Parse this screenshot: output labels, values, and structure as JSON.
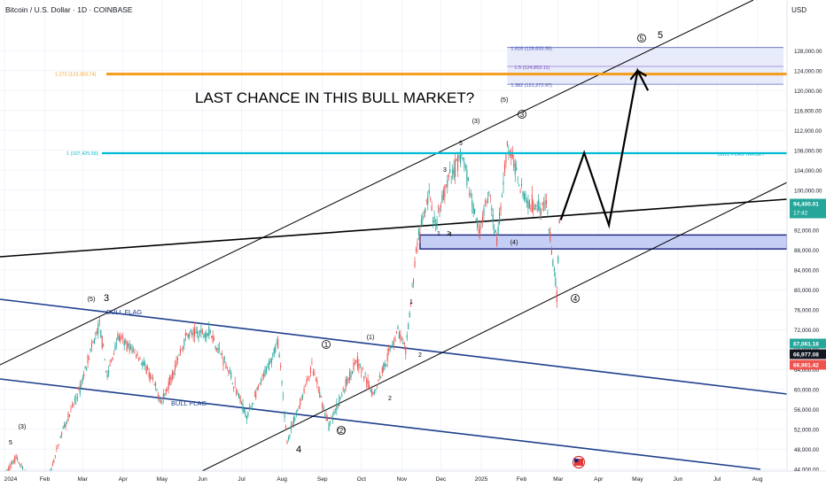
{
  "header": {
    "title": "Bitcoin / U.S. Dollar · 1D · COINBASE",
    "currency": "USD"
  },
  "headline": "LAST CHANCE IN THIS BULL MARKET?",
  "colors": {
    "up": "#26a69a",
    "down": "#ef5350",
    "fib_orange": "#f59c1a",
    "target_cyan": "#00bcd4",
    "channel_blue": "#1e3f8c",
    "zone_fill": "#c5cff5",
    "zone_border": "#1a237e",
    "line": "#000000"
  },
  "chart_data": {
    "type": "candlestick",
    "title": "Bitcoin / U.S. Dollar · 1D · COINBASE",
    "x_axis": {
      "ticks": [
        "2024",
        "Feb",
        "Mar",
        "Apr",
        "May",
        "Jun",
        "Jul",
        "Aug",
        "Sep",
        "Oct",
        "Nov",
        "Dec",
        "2025",
        "Feb",
        "Mar",
        "Apr",
        "May",
        "Jun",
        "Jul",
        "Aug"
      ],
      "range": [
        "2024-01-01",
        "2025-08-20"
      ]
    },
    "y_axis": {
      "currency": "USD",
      "range": [
        42500,
        130000
      ],
      "ticks": [
        "44,000.00",
        "48,000.00",
        "52,000.00",
        "56,000.00",
        "60,000.00",
        "64,000.00",
        "68,000.00",
        "72,000.00",
        "76,000.00",
        "80,000.00",
        "84,000.00",
        "88,000.00",
        "92,000.00",
        "96,000.00",
        "100,000.00",
        "104,000.00",
        "108,000.00",
        "112,000.00",
        "116,000.00",
        "120,000.00",
        "124,000.00",
        "128,000.00"
      ]
    },
    "price_path": [
      [
        "2024-01-01",
        42500
      ],
      [
        "2024-01-10",
        46500
      ],
      [
        "2024-01-23",
        39500
      ],
      [
        "2024-02-05",
        43000
      ],
      [
        "2024-02-15",
        52000
      ],
      [
        "2024-02-28",
        60000
      ],
      [
        "2024-03-05",
        66000
      ],
      [
        "2024-03-14",
        73000
      ],
      [
        "2024-03-20",
        62500
      ],
      [
        "2024-03-28",
        70500
      ],
      [
        "2024-04-12",
        67000
      ],
      [
        "2024-04-20",
        63500
      ],
      [
        "2024-05-01",
        57500
      ],
      [
        "2024-05-20",
        71000
      ],
      [
        "2024-06-07",
        71500
      ],
      [
        "2024-06-20",
        64500
      ],
      [
        "2024-07-05",
        54500
      ],
      [
        "2024-07-29",
        69500
      ],
      [
        "2024-08-05",
        49500
      ],
      [
        "2024-08-24",
        64500
      ],
      [
        "2024-09-06",
        52600
      ],
      [
        "2024-09-27",
        66000
      ],
      [
        "2024-10-10",
        59000
      ],
      [
        "2024-10-29",
        72000
      ],
      [
        "2024-11-04",
        67500
      ],
      [
        "2024-11-13",
        90000
      ],
      [
        "2024-11-22",
        99000
      ],
      [
        "2024-11-27",
        92000
      ],
      [
        "2024-12-05",
        101000
      ],
      [
        "2024-12-17",
        107000
      ],
      [
        "2024-12-30",
        92000
      ],
      [
        "2025-01-07",
        99000
      ],
      [
        "2025-01-13",
        89500
      ],
      [
        "2025-01-21",
        109000
      ],
      [
        "2025-02-05",
        97500
      ],
      [
        "2025-02-20",
        97000
      ],
      [
        "2025-02-28",
        78500
      ],
      [
        "2025-03-02",
        94400
      ]
    ],
    "current_price": "94,400.01",
    "countdown": "17:42",
    "price_tags": [
      {
        "value": "94,400.01",
        "price": 94400,
        "color": "#26a69a",
        "sub": "17:42"
      },
      {
        "value": "67,061.18",
        "price": 67061,
        "color": "#26a69a"
      },
      {
        "value": "66,977.08",
        "price": 66977,
        "color": "#131722"
      },
      {
        "value": "66,901.42",
        "price": 66901,
        "color": "#ef5350"
      }
    ],
    "fib_levels": [
      {
        "label": "1.618 (128,633.95)",
        "value": 128633.95
      },
      {
        "label": "1.5 (124,853.11)",
        "value": 124853.11
      },
      {
        "label": "1.382 (121,272.97)",
        "value": 121272.97
      },
      {
        "label": "1.272 (123,303.74)",
        "value": 123303.74
      },
      {
        "label": "1 (107,425.58)",
        "value": 107425.58
      }
    ],
    "target_label": "BULL FLAG TARGET",
    "flag_labels": [
      "BULL FLAG",
      "BULL FLAG"
    ],
    "wave_labels": [
      "5",
      "(3)",
      "3",
      "(5)",
      "4",
      "1",
      "(1)",
      "2",
      "(2)",
      "1",
      "2",
      "1",
      "2",
      "3",
      "4",
      "5",
      "(3)",
      "3",
      "(5)",
      "(4)",
      "4",
      "5",
      "5"
    ],
    "projection": [
      [
        "2025-03-03",
        94000
      ],
      [
        "2025-03-21",
        107500
      ],
      [
        "2025-04-09",
        93000
      ],
      [
        "2025-05-01",
        124000
      ],
      [
        "2025-05-09",
        120000
      ]
    ]
  }
}
